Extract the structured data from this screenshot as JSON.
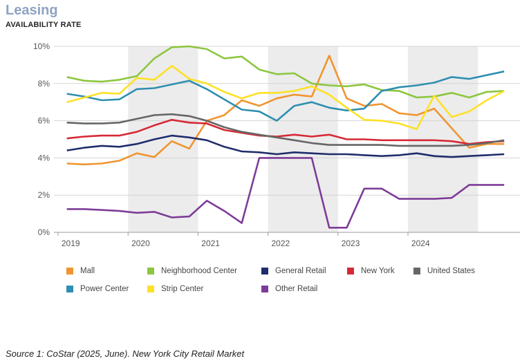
{
  "header": {
    "title": "Leasing",
    "subtitle": "AVAILABILITY RATE"
  },
  "footer": {
    "source": "Source 1: CoStar (2025, June). New York City Retail Market"
  },
  "chart_data": {
    "type": "line",
    "title": "AVAILABILITY RATE",
    "xlabel": "",
    "ylabel": "",
    "ylim": [
      0,
      10
    ],
    "y_ticks": [
      "0%",
      "2%",
      "4%",
      "6%",
      "8%",
      "10%"
    ],
    "x_tick_labels": [
      "2019",
      "2020",
      "2021",
      "2022",
      "2023",
      "2024"
    ],
    "x": [
      "2019 Q1",
      "2019 Q2",
      "2019 Q3",
      "2019 Q4",
      "2020 Q1",
      "2020 Q2",
      "2020 Q3",
      "2020 Q4",
      "2021 Q1",
      "2021 Q2",
      "2021 Q3",
      "2021 Q4",
      "2022 Q1",
      "2022 Q2",
      "2022 Q3",
      "2022 Q4",
      "2023 Q1",
      "2023 Q2",
      "2023 Q3",
      "2023 Q4",
      "2024 Q1",
      "2024 Q2",
      "2024 Q3",
      "2024 Q4",
      "2025 Q1",
      "2025 Q2"
    ],
    "grid": true,
    "shaded_years": [
      "2020",
      "2022",
      "2024"
    ],
    "legend_position": "bottom",
    "series": [
      {
        "name": "Mall",
        "color": "#f0952f",
        "values": [
          3.7,
          3.65,
          3.7,
          3.85,
          4.25,
          4.05,
          4.9,
          4.5,
          6.0,
          6.3,
          7.1,
          6.8,
          7.2,
          7.4,
          7.3,
          9.5,
          7.2,
          6.8,
          6.9,
          6.4,
          6.3,
          6.65,
          5.6,
          4.55,
          4.75,
          4.75
        ]
      },
      {
        "name": "Neighborhood Center",
        "color": "#8cc63f",
        "values": [
          8.35,
          8.15,
          8.1,
          8.2,
          8.4,
          9.35,
          9.95,
          10.0,
          9.85,
          9.35,
          9.45,
          8.75,
          8.5,
          8.55,
          8.0,
          7.9,
          7.85,
          7.95,
          7.65,
          7.6,
          7.25,
          7.3,
          7.5,
          7.25,
          7.55,
          7.6
        ]
      },
      {
        "name": "General Retail",
        "color": "#1f2d6b",
        "values": [
          4.4,
          4.55,
          4.65,
          4.6,
          4.75,
          5.0,
          5.2,
          5.1,
          4.95,
          4.6,
          4.35,
          4.3,
          4.2,
          4.3,
          4.25,
          4.2,
          4.2,
          4.15,
          4.1,
          4.15,
          4.25,
          4.1,
          4.05,
          4.1,
          4.15,
          4.2
        ]
      },
      {
        "name": "New York",
        "color": "#d62936",
        "values": [
          5.05,
          5.15,
          5.2,
          5.2,
          5.4,
          5.75,
          6.05,
          5.9,
          5.85,
          5.5,
          5.35,
          5.2,
          5.15,
          5.25,
          5.15,
          5.25,
          5.0,
          5.0,
          4.95,
          4.95,
          4.95,
          4.95,
          4.9,
          4.75,
          4.85,
          4.9
        ]
      },
      {
        "name": "United States",
        "color": "#666666",
        "values": [
          5.9,
          5.85,
          5.85,
          5.9,
          6.1,
          6.3,
          6.35,
          6.25,
          6.0,
          5.65,
          5.4,
          5.25,
          5.1,
          4.95,
          4.8,
          4.7,
          4.7,
          4.7,
          4.7,
          4.65,
          4.65,
          4.65,
          4.65,
          4.7,
          4.8,
          4.95
        ]
      },
      {
        "name": "Power Center",
        "color": "#2e8fb0",
        "values": [
          7.45,
          7.3,
          7.1,
          7.15,
          7.7,
          7.75,
          7.95,
          8.15,
          7.7,
          7.15,
          6.6,
          6.5,
          6.0,
          6.8,
          7.0,
          6.7,
          6.55,
          6.65,
          7.6,
          7.8,
          7.9,
          8.05,
          8.35,
          8.25,
          8.45,
          8.65
        ]
      },
      {
        "name": "Strip Center",
        "color": "#fde125",
        "values": [
          7.0,
          7.25,
          7.5,
          7.45,
          8.3,
          8.2,
          8.95,
          8.25,
          8.0,
          7.55,
          7.2,
          7.5,
          7.5,
          7.6,
          7.85,
          7.4,
          6.7,
          6.05,
          6.0,
          5.85,
          5.55,
          7.35,
          6.2,
          6.5,
          7.1,
          7.6
        ]
      },
      {
        "name": "Other Retail",
        "color": "#7d3c98",
        "values": [
          1.25,
          1.25,
          1.2,
          1.15,
          1.05,
          1.1,
          0.8,
          0.85,
          1.7,
          1.15,
          0.5,
          4.0,
          4.0,
          4.0,
          4.0,
          0.25,
          0.25,
          2.35,
          2.35,
          1.8,
          1.8,
          1.8,
          1.85,
          2.55,
          2.55,
          2.55
        ]
      }
    ]
  }
}
